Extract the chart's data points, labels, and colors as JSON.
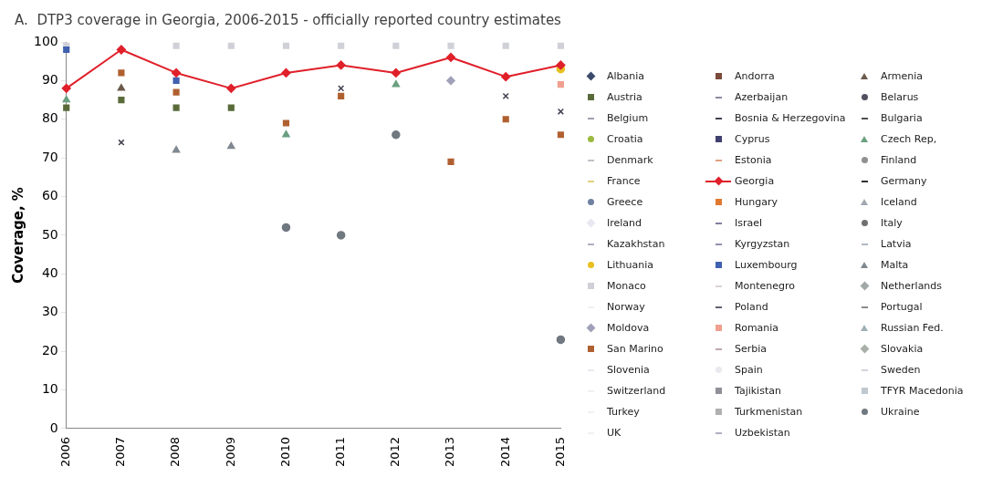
{
  "chart_data": {
    "type": "scatter",
    "title": "A.  DTP3 coverage in Georgia, 2006-2015 - officially reported country estimates",
    "ylabel": "Coverage, %",
    "categories": [
      "2006",
      "2007",
      "2008",
      "2009",
      "2010",
      "2011",
      "2012",
      "2013",
      "2014",
      "2015"
    ],
    "ylim": [
      0,
      100
    ],
    "yticks": [
      0,
      10,
      20,
      30,
      40,
      50,
      60,
      70,
      80,
      90,
      100
    ],
    "grid": false,
    "legend": "right",
    "series": [
      {
        "name": "Albania",
        "color": "#3b4a6b",
        "marker": "diamond",
        "values": [
          null,
          null,
          null,
          null,
          null,
          null,
          null,
          null,
          null,
          null
        ]
      },
      {
        "name": "Andorra",
        "color": "#7b4a3a",
        "marker": "square",
        "values": [
          null,
          null,
          null,
          null,
          null,
          null,
          null,
          null,
          null,
          null
        ]
      },
      {
        "name": "Armenia",
        "color": "#6b5a4a",
        "marker": "triangle",
        "values": [
          null,
          88,
          null,
          null,
          null,
          null,
          null,
          null,
          null,
          null
        ]
      },
      {
        "name": "Austria",
        "color": "#5a6b3a",
        "marker": "square",
        "values": [
          83,
          85,
          83,
          83,
          null,
          null,
          null,
          null,
          null,
          null
        ]
      },
      {
        "name": "Azerbaijan",
        "color": "#8a8aa0",
        "marker": "cross",
        "values": [
          null,
          null,
          null,
          null,
          null,
          null,
          null,
          null,
          null,
          null
        ]
      },
      {
        "name": "Belarus",
        "color": "#505060",
        "marker": "circle",
        "values": [
          null,
          null,
          null,
          null,
          null,
          null,
          null,
          null,
          null,
          null
        ]
      },
      {
        "name": "Belgium",
        "color": "#a0a0b0",
        "marker": "cross",
        "values": [
          null,
          null,
          null,
          null,
          null,
          null,
          null,
          null,
          null,
          null
        ]
      },
      {
        "name": "Bosnia & Herzegovina",
        "color": "#404050",
        "marker": "cross",
        "values": [
          null,
          74,
          null,
          null,
          null,
          88,
          null,
          null,
          86,
          82
        ]
      },
      {
        "name": "Bulgaria",
        "color": "#505050",
        "marker": "cross",
        "values": [
          null,
          null,
          null,
          null,
          null,
          null,
          null,
          null,
          null,
          null
        ]
      },
      {
        "name": "Croatia",
        "color": "#9aba40",
        "marker": "circle",
        "values": [
          null,
          null,
          null,
          null,
          null,
          null,
          null,
          null,
          null,
          null
        ]
      },
      {
        "name": "Cyprus",
        "color": "#404070",
        "marker": "square",
        "values": [
          null,
          null,
          null,
          null,
          null,
          null,
          null,
          null,
          null,
          null
        ]
      },
      {
        "name": "Czech Rep,",
        "color": "#6aa080",
        "marker": "triangle",
        "values": [
          85,
          null,
          null,
          null,
          76,
          null,
          89,
          null,
          null,
          null
        ]
      },
      {
        "name": "Denmark",
        "color": "#c0c0c8",
        "marker": "cross",
        "values": [
          null,
          null,
          null,
          null,
          null,
          null,
          null,
          null,
          null,
          null
        ]
      },
      {
        "name": "Estonia",
        "color": "#e0a080",
        "marker": "cross",
        "values": [
          null,
          null,
          null,
          null,
          null,
          null,
          null,
          null,
          null,
          null
        ]
      },
      {
        "name": "Finland",
        "color": "#909090",
        "marker": "circle",
        "values": [
          null,
          null,
          null,
          null,
          null,
          null,
          null,
          null,
          null,
          null
        ]
      },
      {
        "name": "France",
        "color": "#e0d080",
        "marker": "cross",
        "values": [
          null,
          null,
          null,
          null,
          null,
          null,
          null,
          null,
          null,
          null
        ]
      },
      {
        "name": "Georgia",
        "color": "#e0202a",
        "type": "line",
        "marker": "diamond",
        "line_style": "solid",
        "values": [
          88,
          98,
          92,
          88,
          92,
          94,
          92,
          96,
          91,
          94
        ]
      },
      {
        "name": "Germany",
        "color": "#303030",
        "marker": "cross",
        "values": [
          null,
          null,
          null,
          null,
          null,
          null,
          null,
          null,
          null,
          null
        ]
      },
      {
        "name": "Greece",
        "color": "#7080a0",
        "marker": "circle",
        "values": [
          null,
          null,
          null,
          null,
          null,
          null,
          null,
          null,
          null,
          null
        ]
      },
      {
        "name": "Hungary",
        "color": "#e07830",
        "marker": "square",
        "values": [
          null,
          null,
          null,
          null,
          null,
          null,
          null,
          null,
          null,
          null
        ]
      },
      {
        "name": "Iceland",
        "color": "#a0a8b0",
        "marker": "triangle",
        "values": [
          null,
          null,
          null,
          null,
          null,
          null,
          null,
          null,
          null,
          null
        ]
      },
      {
        "name": "Ireland",
        "color": "#e8e8f0",
        "marker": "diamond",
        "values": [
          null,
          null,
          null,
          null,
          null,
          null,
          null,
          null,
          null,
          null
        ]
      },
      {
        "name": "Israel",
        "color": "#8080a0",
        "marker": "cross",
        "values": [
          null,
          null,
          null,
          null,
          null,
          null,
          null,
          null,
          null,
          null
        ]
      },
      {
        "name": "Italy",
        "color": "#707070",
        "marker": "circle",
        "values": [
          null,
          null,
          null,
          null,
          null,
          null,
          null,
          null,
          null,
          null
        ]
      },
      {
        "name": "Kazakhstan",
        "color": "#b0b0c0",
        "marker": "cross",
        "values": [
          null,
          null,
          null,
          null,
          null,
          null,
          null,
          null,
          null,
          null
        ]
      },
      {
        "name": "Kyrgyzstan",
        "color": "#9090b0",
        "marker": "cross",
        "values": [
          null,
          null,
          null,
          null,
          null,
          null,
          null,
          null,
          null,
          null
        ]
      },
      {
        "name": "Latvia",
        "color": "#b0b8c0",
        "marker": "cross",
        "values": [
          null,
          null,
          null,
          null,
          null,
          null,
          null,
          null,
          null,
          null
        ]
      },
      {
        "name": "Lithuania",
        "color": "#e8c020",
        "marker": "circle",
        "values": [
          null,
          null,
          null,
          null,
          null,
          null,
          null,
          null,
          null,
          93
        ]
      },
      {
        "name": "Luxembourg",
        "color": "#4060b0",
        "marker": "square",
        "values": [
          98,
          null,
          90,
          null,
          null,
          null,
          null,
          null,
          null,
          null
        ]
      },
      {
        "name": "Malta",
        "color": "#808890",
        "marker": "triangle",
        "values": [
          null,
          null,
          72,
          73,
          null,
          null,
          null,
          null,
          null,
          null
        ]
      },
      {
        "name": "Monaco",
        "color": "#d0d0d8",
        "marker": "square",
        "values": [
          99,
          null,
          99,
          99,
          99,
          99,
          99,
          99,
          99,
          99
        ]
      },
      {
        "name": "Montenegro",
        "color": "#d8d0d8",
        "marker": "cross",
        "values": [
          null,
          null,
          null,
          null,
          null,
          null,
          null,
          null,
          null,
          null
        ]
      },
      {
        "name": "Netherlands",
        "color": "#a0a8a8",
        "marker": "diamond",
        "values": [
          null,
          null,
          null,
          null,
          null,
          null,
          null,
          null,
          null,
          null
        ]
      },
      {
        "name": "Norway",
        "color": "#f0f0f4",
        "marker": "cross",
        "values": [
          null,
          null,
          null,
          null,
          null,
          null,
          null,
          null,
          null,
          null
        ]
      },
      {
        "name": "Poland",
        "color": "#606070",
        "marker": "cross",
        "values": [
          null,
          null,
          null,
          null,
          null,
          null,
          null,
          null,
          null,
          null
        ]
      },
      {
        "name": "Portugal",
        "color": "#8a8a8a",
        "marker": "cross",
        "values": [
          null,
          null,
          null,
          null,
          null,
          null,
          null,
          null,
          null,
          null
        ]
      },
      {
        "name": "Moldova",
        "color": "#a0a0b8",
        "marker": "diamond",
        "values": [
          null,
          null,
          null,
          null,
          null,
          null,
          null,
          90,
          null,
          null
        ]
      },
      {
        "name": "Romania",
        "color": "#f0a090",
        "marker": "square",
        "values": [
          null,
          null,
          null,
          null,
          null,
          null,
          null,
          null,
          null,
          89
        ]
      },
      {
        "name": "Russian Fed.",
        "color": "#a0b0b8",
        "marker": "triangle",
        "values": [
          null,
          null,
          null,
          null,
          null,
          null,
          null,
          null,
          null,
          null
        ]
      },
      {
        "name": "San Marino",
        "color": "#b06030",
        "marker": "square",
        "values": [
          null,
          92,
          87,
          null,
          79,
          86,
          null,
          69,
          80,
          76
        ]
      },
      {
        "name": "Serbia",
        "color": "#c0a8b0",
        "marker": "cross",
        "values": [
          null,
          null,
          null,
          null,
          null,
          null,
          null,
          null,
          null,
          null
        ]
      },
      {
        "name": "Slovakia",
        "color": "#a8b0a8",
        "marker": "diamond",
        "values": [
          null,
          null,
          null,
          null,
          null,
          null,
          null,
          null,
          null,
          null
        ]
      },
      {
        "name": "Slovenia",
        "color": "#e8e8f0",
        "marker": "cross",
        "values": [
          null,
          null,
          null,
          null,
          null,
          null,
          null,
          null,
          null,
          null
        ]
      },
      {
        "name": "Spain",
        "color": "#e8eaee",
        "marker": "circle",
        "values": [
          null,
          null,
          null,
          null,
          null,
          null,
          null,
          null,
          null,
          null
        ]
      },
      {
        "name": "Sweden",
        "color": "#d0d4dc",
        "marker": "cross",
        "values": [
          null,
          null,
          null,
          null,
          null,
          null,
          null,
          null,
          null,
          null
        ]
      },
      {
        "name": "Switzerland",
        "color": "#f0f0f0",
        "marker": "cross",
        "values": [
          null,
          null,
          null,
          null,
          null,
          null,
          null,
          null,
          null,
          null
        ]
      },
      {
        "name": "Tajikistan",
        "color": "#909098",
        "marker": "square",
        "values": [
          null,
          null,
          null,
          null,
          null,
          null,
          null,
          null,
          null,
          null
        ]
      },
      {
        "name": "TFYR Macedonia",
        "color": "#c0c8d0",
        "marker": "square",
        "values": [
          null,
          null,
          null,
          null,
          null,
          null,
          null,
          null,
          null,
          null
        ]
      },
      {
        "name": "Turkey",
        "color": "#f0f0f4",
        "marker": "cross",
        "values": [
          null,
          null,
          null,
          null,
          null,
          null,
          null,
          null,
          null,
          null
        ]
      },
      {
        "name": "Turkmenistan",
        "color": "#b0b0b0",
        "marker": "square",
        "values": [
          null,
          null,
          null,
          null,
          null,
          null,
          null,
          null,
          null,
          null
        ]
      },
      {
        "name": "Ukraine",
        "color": "#707880",
        "marker": "circle",
        "values": [
          null,
          null,
          null,
          null,
          52,
          50,
          76,
          null,
          null,
          23
        ]
      },
      {
        "name": "UK",
        "color": "#f0f0f4",
        "marker": "cross",
        "values": [
          null,
          null,
          null,
          null,
          null,
          null,
          null,
          null,
          null,
          null
        ]
      },
      {
        "name": "Uzbekistan",
        "color": "#b0b0c0",
        "marker": "cross",
        "values": [
          null,
          null,
          null,
          null,
          null,
          null,
          null,
          null,
          null,
          null
        ]
      }
    ]
  }
}
